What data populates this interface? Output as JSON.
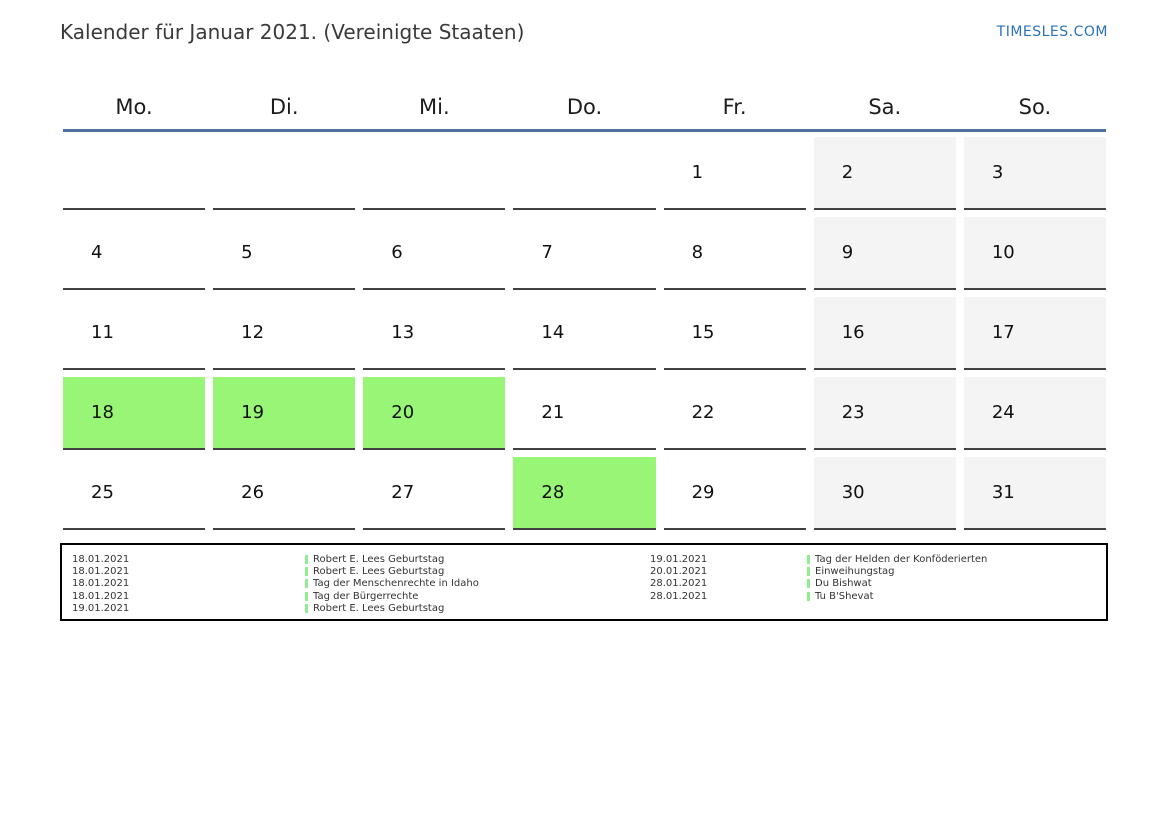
{
  "header": {
    "title": "Kalender für Januar 2021. (Vereinigte Staaten)",
    "brand": "TIMESLES.COM"
  },
  "calendar": {
    "day_headers": [
      "Mo.",
      "Di.",
      "Mi.",
      "Do.",
      "Fr.",
      "Sa.",
      "So."
    ],
    "weeks": [
      [
        "",
        "",
        "",
        "",
        "1",
        "2",
        "3"
      ],
      [
        "4",
        "5",
        "6",
        "7",
        "8",
        "9",
        "10"
      ],
      [
        "11",
        "12",
        "13",
        "14",
        "15",
        "16",
        "17"
      ],
      [
        "18",
        "19",
        "20",
        "21",
        "22",
        "23",
        "24"
      ],
      [
        "25",
        "26",
        "27",
        "28",
        "29",
        "30",
        "31"
      ]
    ],
    "highlighted_days": [
      "18",
      "19",
      "20",
      "28"
    ],
    "weekend_columns": [
      5,
      6
    ],
    "colors": {
      "highlight_green": "#98f575",
      "weekend_gray": "#f4f4f4",
      "header_line_blue": "#4e729e",
      "cell_border": "#414141",
      "brand_blue": "#2b72b8",
      "legend_bar_green": "#90ee90"
    }
  },
  "legend": {
    "columns": [
      {
        "entries": [
          {
            "date": "18.01.2021",
            "name": "Robert E. Lees Geburtstag"
          },
          {
            "date": "18.01.2021",
            "name": "Robert E. Lees Geburtstag"
          },
          {
            "date": "18.01.2021",
            "name": "Tag der Menschenrechte in Idaho"
          },
          {
            "date": "18.01.2021",
            "name": "Tag der Bürgerrechte"
          },
          {
            "date": "19.01.2021",
            "name": "Robert E. Lees Geburtstag"
          }
        ]
      },
      {
        "entries": [
          {
            "date": "19.01.2021",
            "name": "Tag der Helden der Konföderierten"
          },
          {
            "date": "20.01.2021",
            "name": "Einweihungstag"
          },
          {
            "date": "28.01.2021",
            "name": "Du Bishwat"
          },
          {
            "date": "28.01.2021",
            "name": "Tu B'Shevat"
          }
        ]
      }
    ]
  }
}
